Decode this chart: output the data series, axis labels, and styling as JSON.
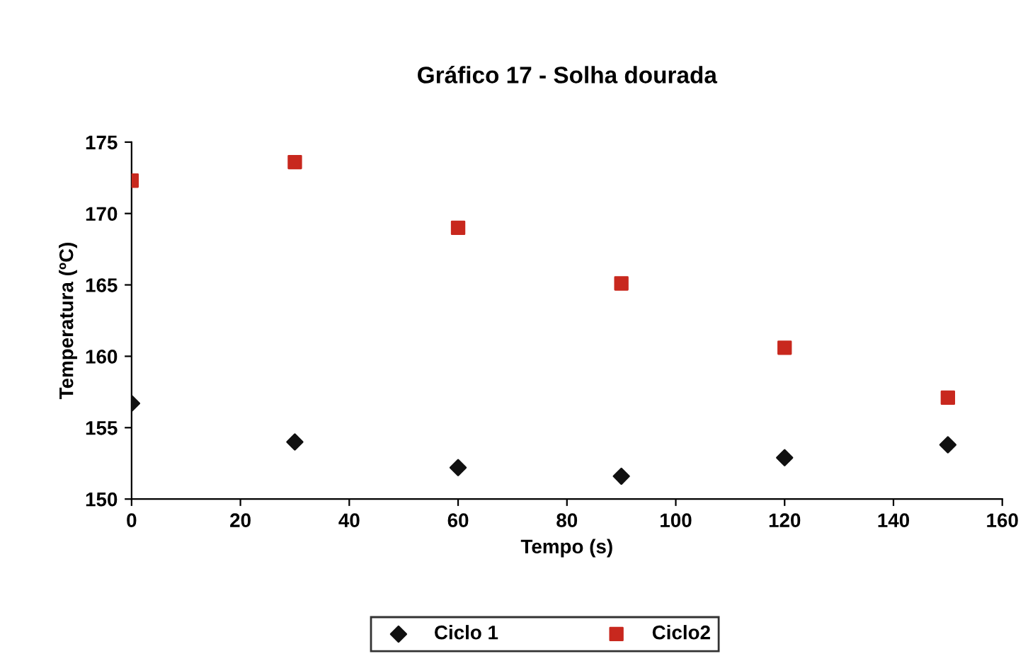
{
  "chart_data": {
    "type": "scatter",
    "title": "Gráfico 17 - Solha dourada",
    "xlabel": "Tempo (s)",
    "ylabel": "Temperatura (ºC)",
    "x": [
      0,
      30,
      60,
      90,
      120,
      150
    ],
    "series": [
      {
        "name": "Ciclo 1",
        "color": "#111111",
        "marker": "diamond",
        "values": [
          156.7,
          154.0,
          152.2,
          151.6,
          152.9,
          153.8
        ]
      },
      {
        "name": "Ciclo2",
        "color": "#c8281e",
        "marker": "square",
        "values": [
          172.3,
          173.6,
          169.0,
          165.1,
          160.6,
          157.1
        ]
      }
    ],
    "xlim": [
      0,
      160
    ],
    "xticks": [
      0,
      20,
      40,
      60,
      80,
      100,
      120,
      140,
      160
    ],
    "ylim": [
      150,
      175
    ],
    "yticks": [
      150,
      155,
      160,
      165,
      170,
      175
    ],
    "grid": false,
    "legend": "bottom"
  }
}
